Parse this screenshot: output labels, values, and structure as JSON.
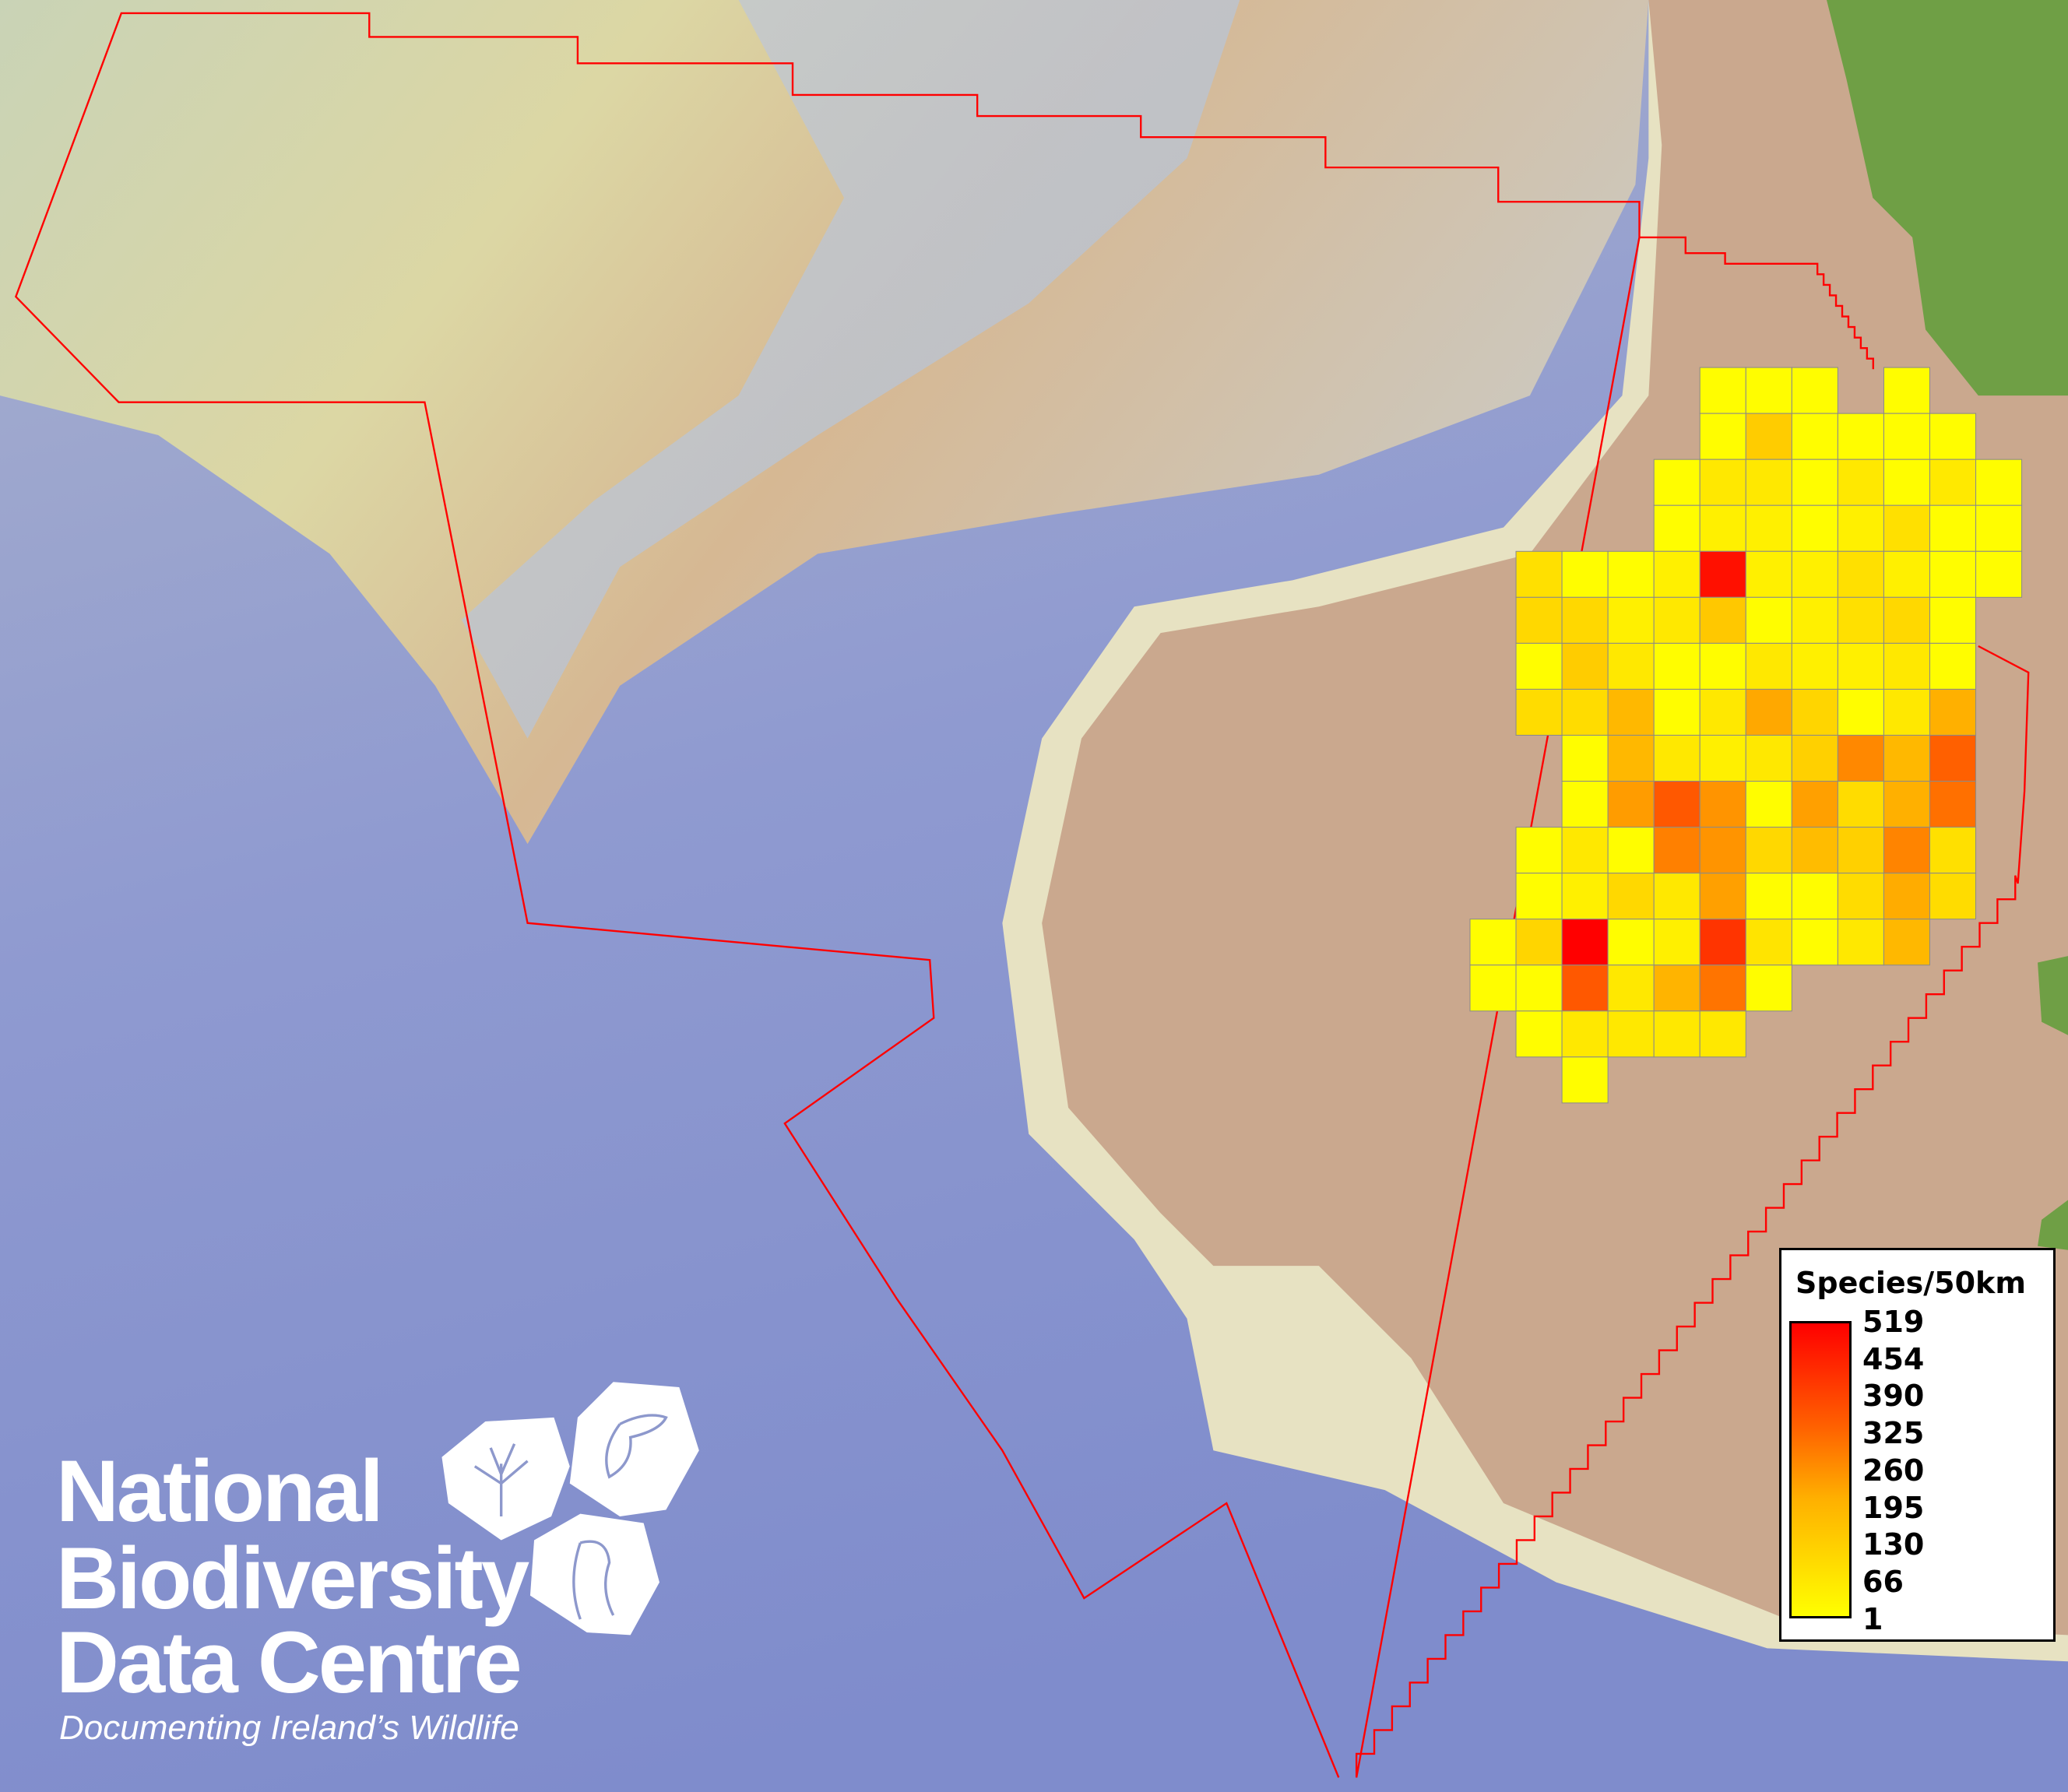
{
  "map": {
    "colors": {
      "ocean": "#8d98cc",
      "shelf": "#d9d6a6",
      "slope": "#c9cdd0",
      "land": "#caa88e",
      "highland": "#6f9f45",
      "boundary": "#ff0000",
      "grid_outline": "#8a8a8a"
    },
    "color_scale": {
      "min_color": "#ffff00",
      "max_color": "#ff0000",
      "min": 1,
      "max": 519
    }
  },
  "legend": {
    "title": "Species/50km",
    "labels": [
      "519",
      "454",
      "390",
      "325",
      "260",
      "195",
      "130",
      "66",
      "1"
    ]
  },
  "grid": {
    "cell_size_km": 50,
    "rows": [
      [
        null,
        null,
        null,
        null,
        null,
        5,
        5,
        5,
        null,
        5,
        null,
        null
      ],
      [
        null,
        null,
        null,
        null,
        null,
        5,
        105,
        5,
        5,
        5,
        5,
        null
      ],
      [
        null,
        null,
        null,
        null,
        5,
        48,
        48,
        5,
        48,
        5,
        45,
        5
      ],
      [
        null,
        null,
        null,
        null,
        5,
        31,
        31,
        5,
        31,
        64,
        5,
        5
      ],
      [
        null,
        64,
        5,
        5,
        31,
        487,
        31,
        31,
        64,
        31,
        5,
        5
      ],
      [
        null,
        80,
        80,
        31,
        48,
        113,
        5,
        31,
        64,
        80,
        5,
        null
      ],
      [
        null,
        5,
        105,
        48,
        5,
        5,
        48,
        31,
        31,
        48,
        5,
        null
      ],
      [
        null,
        72,
        72,
        145,
        5,
        48,
        178,
        87,
        5,
        48,
        161,
        null
      ],
      [
        null,
        null,
        5,
        145,
        48,
        31,
        48,
        96,
        243,
        145,
        324,
        null
      ],
      [
        null,
        null,
        5,
        202,
        340,
        218,
        5,
        194,
        72,
        161,
        292,
        null
      ],
      [
        null,
        5,
        48,
        5,
        259,
        218,
        80,
        137,
        96,
        251,
        64,
        null
      ],
      [
        null,
        5,
        31,
        80,
        48,
        194,
        5,
        5,
        72,
        170,
        72,
        null
      ],
      [
        5,
        87,
        519,
        5,
        31,
        413,
        56,
        5,
        48,
        145,
        null,
        null
      ],
      [
        5,
        5,
        340,
        48,
        153,
        283,
        5,
        null,
        null,
        null,
        null,
        null
      ],
      [
        null,
        5,
        48,
        48,
        48,
        48,
        null,
        null,
        null,
        null,
        null,
        null
      ],
      [
        null,
        null,
        5,
        null,
        null,
        null,
        null,
        null,
        null,
        null,
        null,
        null
      ]
    ]
  },
  "logo": {
    "lines": [
      "National",
      "Biodiversity",
      "Data Centre"
    ],
    "tagline": "Documenting Ireland’s Wildlife",
    "icons": [
      "tree-icon",
      "butterfly-icon",
      "seahorse-icon"
    ]
  }
}
